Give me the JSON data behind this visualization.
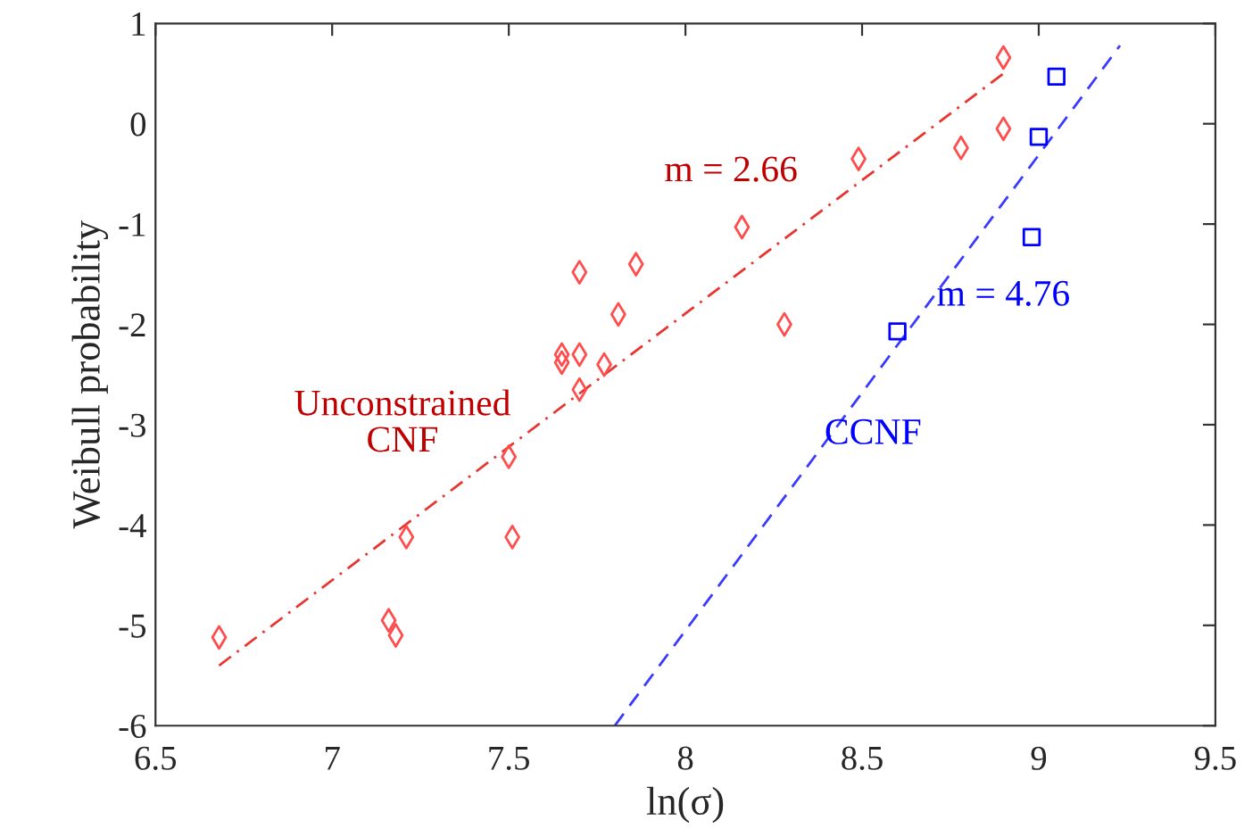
{
  "chart_data": {
    "type": "scatter",
    "xlabel": "ln(σ)",
    "ylabel": "Weibull probability",
    "xlim": [
      6.5,
      9.5
    ],
    "ylim": [
      -6,
      1
    ],
    "xticks": [
      6.5,
      7,
      7.5,
      8,
      8.5,
      9,
      9.5
    ],
    "yticks": [
      -6,
      -5,
      -4,
      -3,
      -2,
      -1,
      0,
      1
    ],
    "grid": false,
    "legend": false,
    "series": [
      {
        "marker": "diamond",
        "color": "#ff4d4d",
        "x": [
          6.68,
          7.16,
          7.18,
          7.21,
          7.5,
          7.51,
          7.65,
          7.65,
          7.7,
          7.7,
          7.7,
          7.77,
          7.81,
          7.86,
          8.16,
          8.28,
          8.49,
          8.78,
          8.9,
          8.9
        ],
        "values": [
          -5.12,
          -4.95,
          -5.1,
          -4.12,
          -3.32,
          -4.12,
          -2.3,
          -2.38,
          -2.3,
          -1.48,
          -2.65,
          -2.4,
          -1.9,
          -1.4,
          -1.03,
          -2.0,
          -0.35,
          -0.24,
          -0.05,
          0.66
        ]
      },
      {
        "marker": "square",
        "color": "#0000ff",
        "x": [
          8.6,
          8.98,
          9.0,
          9.05
        ],
        "values": [
          -2.07,
          -1.13,
          -0.13,
          0.47
        ]
      },
      {
        "type": "line",
        "line_style": "dashdot",
        "color": "#e8352f",
        "x": [
          6.68,
          8.9
        ],
        "values": [
          -5.4,
          0.5
        ]
      },
      {
        "type": "line",
        "line_style": "dashed",
        "color": "#3a3aff",
        "x": [
          7.8,
          9.23
        ],
        "values": [
          -6.0,
          0.78
        ]
      }
    ],
    "annotations": [
      "m = 2.66",
      "Unconstrained\nCNF",
      "m = 4.76",
      "CCNF"
    ]
  }
}
